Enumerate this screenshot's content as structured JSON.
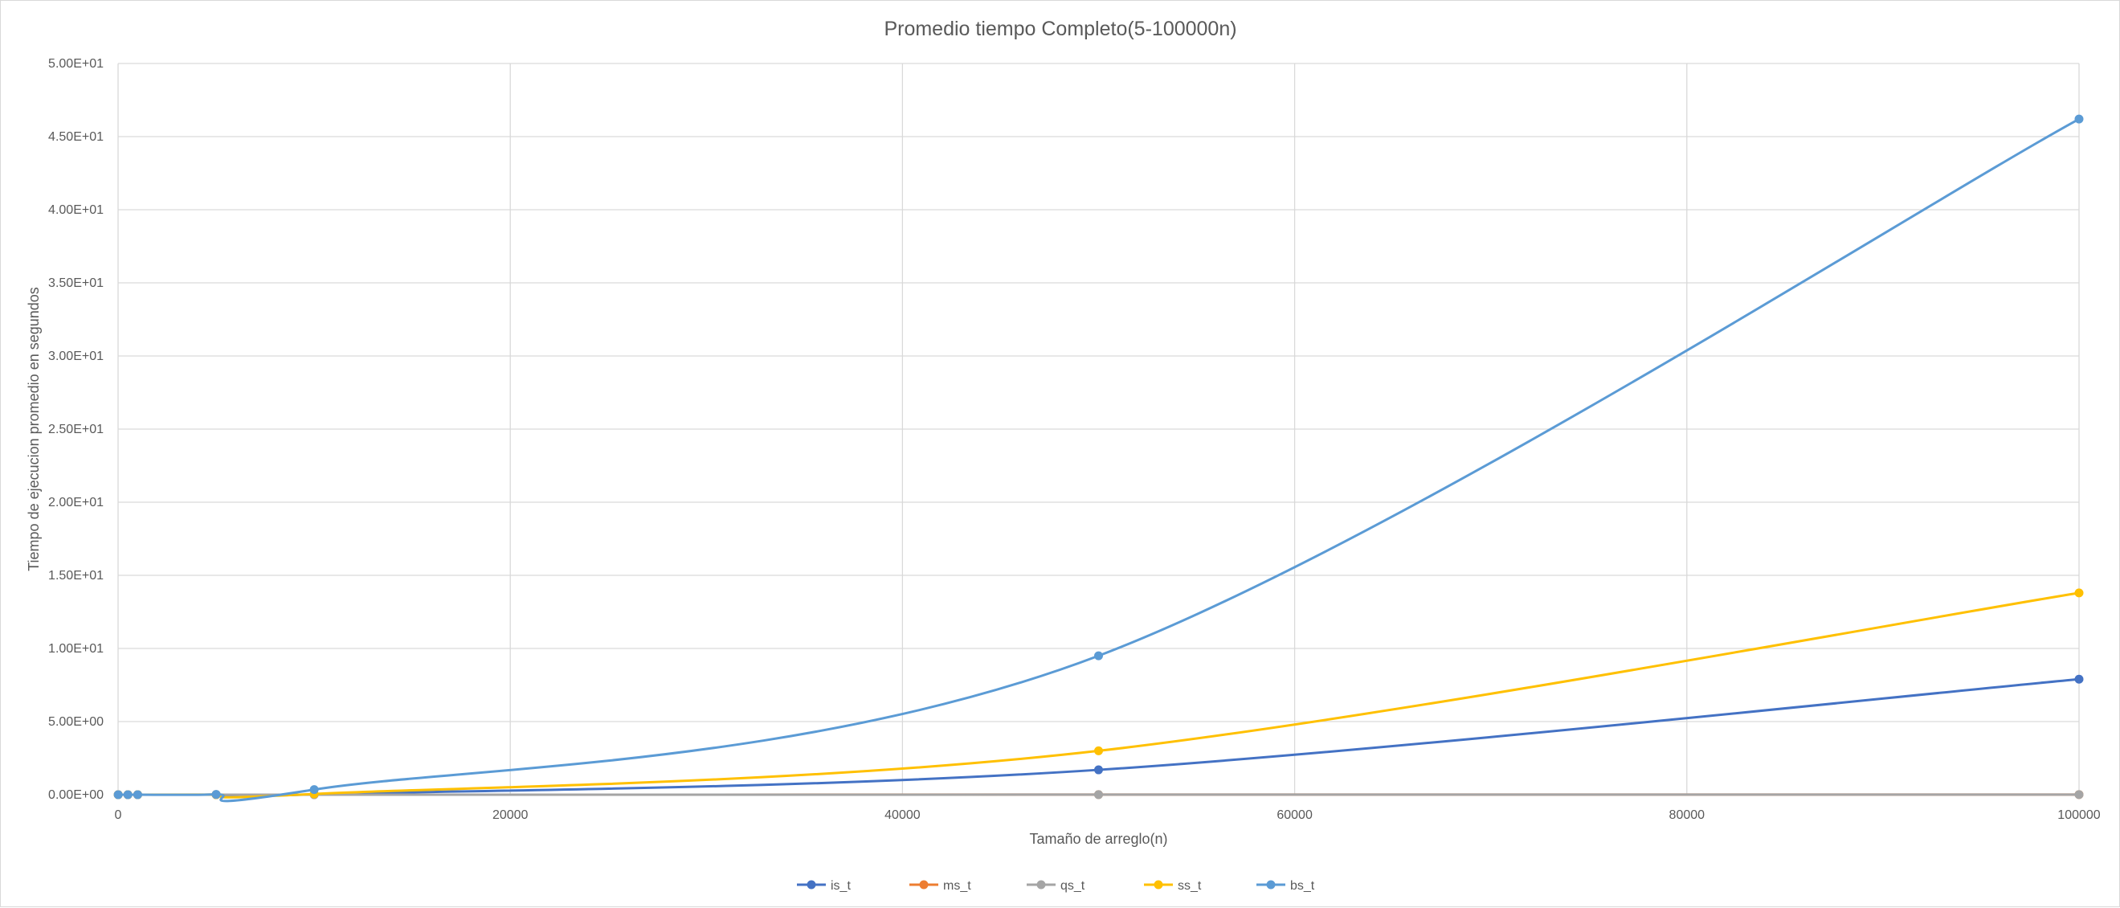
{
  "chart_data": {
    "type": "line",
    "title": "Promedio tiempo Completo(5-100000n)",
    "xlabel": "Tamaño de arreglo(n)",
    "ylabel": "Tiempo de ejecucion promedio en segundos",
    "xlim": [
      0,
      100000
    ],
    "ylim": [
      0,
      50
    ],
    "x_ticks": [
      0,
      20000,
      40000,
      60000,
      80000,
      100000
    ],
    "x_tick_labels": [
      "0",
      "20000",
      "40000",
      "60000",
      "80000",
      "100000"
    ],
    "y_ticks": [
      0,
      5,
      10,
      15,
      20,
      25,
      30,
      35,
      40,
      45,
      50
    ],
    "y_tick_labels": [
      "0.00E+00",
      "5.00E+00",
      "1.00E+01",
      "1.50E+01",
      "2.00E+01",
      "2.50E+01",
      "3.00E+01",
      "3.50E+01",
      "4.00E+01",
      "4.50E+01",
      "5.00E+01"
    ],
    "grid": true,
    "legend_position": "bottom",
    "x": [
      5,
      500,
      1000,
      5000,
      10000,
      50000,
      100000
    ],
    "series": [
      {
        "name": "is_t",
        "color": "#4472C4",
        "values": [
          0,
          0.0001,
          0.0003,
          0.004,
          0.02,
          1.7,
          7.9
        ]
      },
      {
        "name": "ms_t",
        "color": "#ED7D31",
        "values": [
          0,
          0,
          0,
          0,
          0.001,
          0.005,
          0.01
        ]
      },
      {
        "name": "qs_t",
        "color": "#A5A5A5",
        "values": [
          0,
          0,
          0,
          0,
          0.001,
          0.004,
          0.008
        ]
      },
      {
        "name": "ss_t",
        "color": "#FFC000",
        "values": [
          0,
          0.0002,
          0.0005,
          0.01,
          0.05,
          3.0,
          13.8
        ]
      },
      {
        "name": "bs_t",
        "color": "#5B9BD5",
        "values": [
          0,
          0.0005,
          0.001,
          0.02,
          0.35,
          9.5,
          46.2
        ]
      }
    ]
  }
}
